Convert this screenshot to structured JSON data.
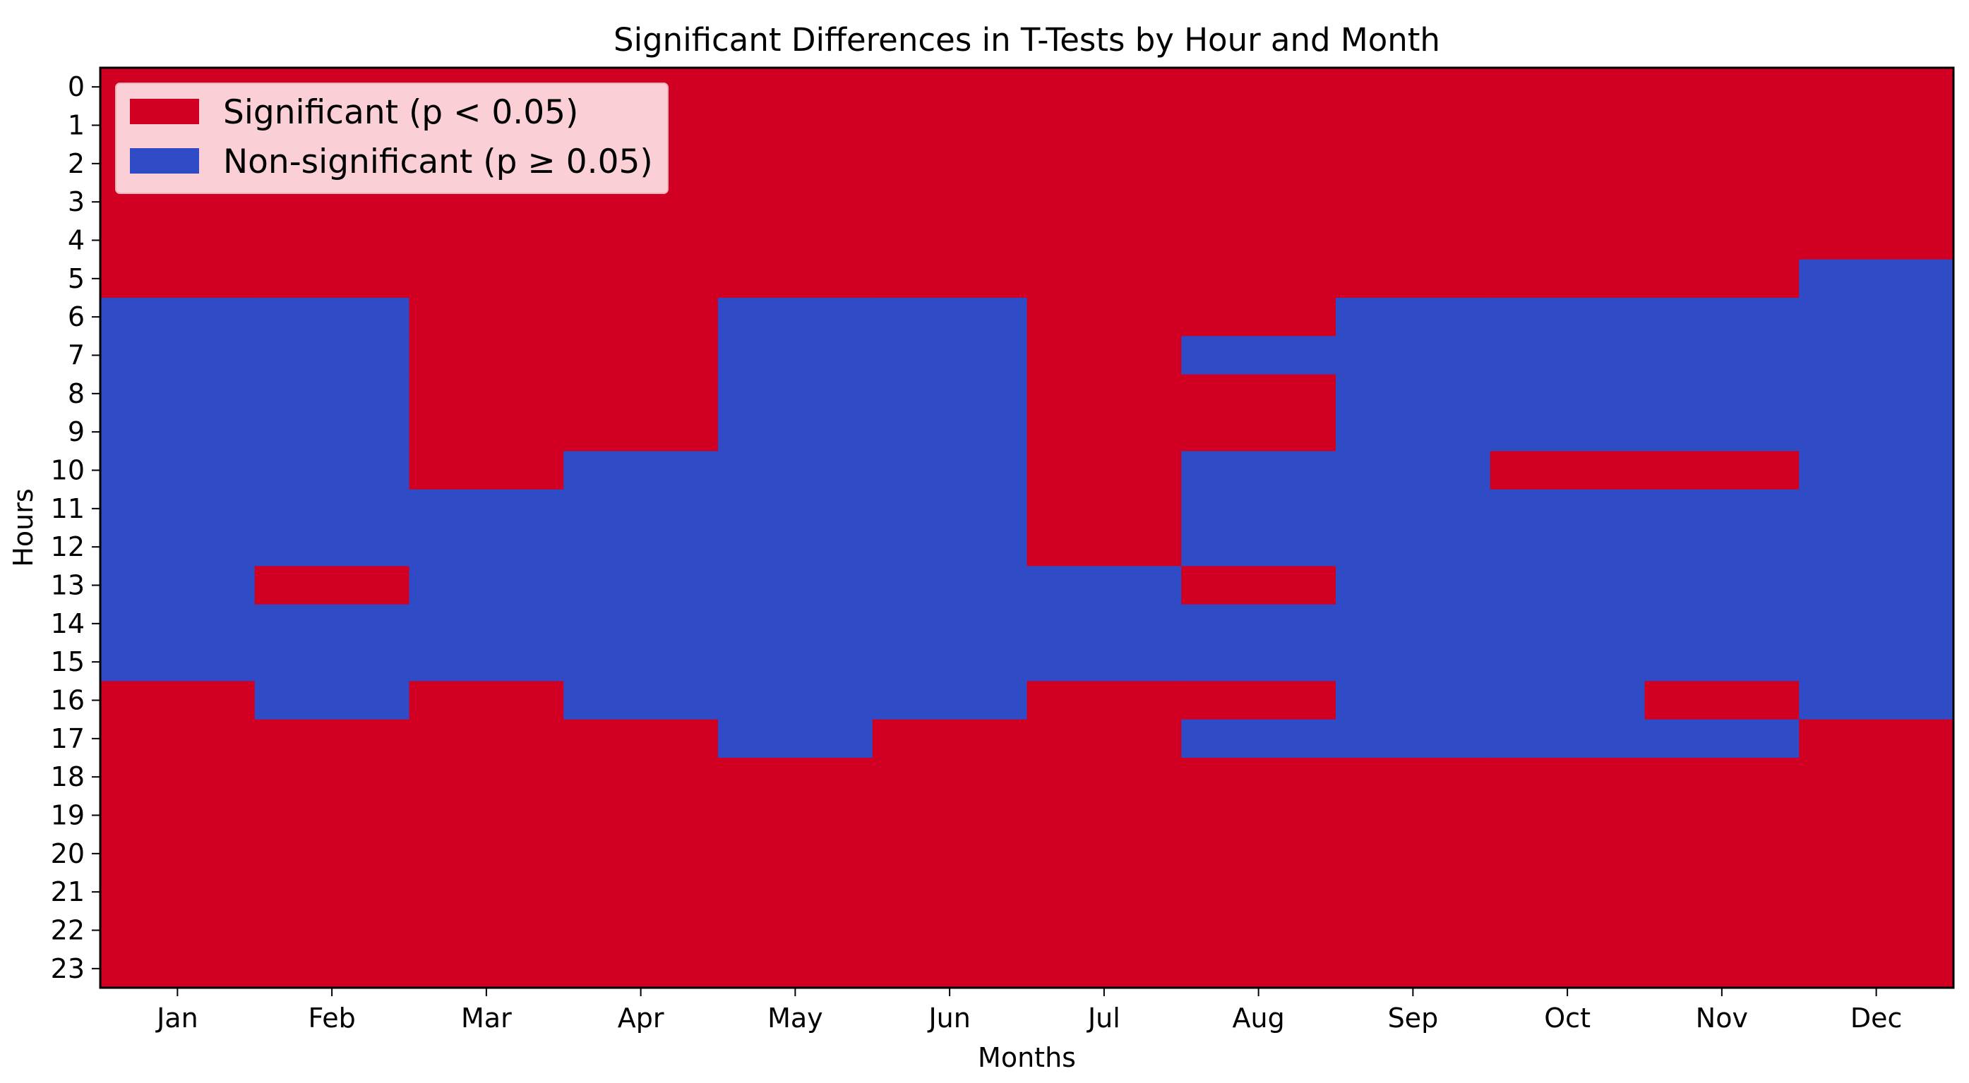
{
  "chart_data": {
    "type": "heatmap",
    "title": "Significant Differences in T-Tests by Hour and Month",
    "xlabel": "Months",
    "ylabel": "Hours",
    "x_categories": [
      "Jan",
      "Feb",
      "Mar",
      "Apr",
      "May",
      "Jun",
      "Jul",
      "Aug",
      "Sep",
      "Oct",
      "Nov",
      "Dec"
    ],
    "y_categories": [
      "0",
      "1",
      "2",
      "3",
      "4",
      "5",
      "6",
      "7",
      "8",
      "9",
      "10",
      "11",
      "12",
      "13",
      "14",
      "15",
      "16",
      "17",
      "18",
      "19",
      "20",
      "21",
      "22",
      "23"
    ],
    "value_meaning": {
      "1": "Significant (p < 0.05)",
      "0": "Non-significant (p ≥ 0.05)"
    },
    "matrix": [
      [
        1,
        1,
        1,
        1,
        1,
        1,
        1,
        1,
        1,
        1,
        1,
        1
      ],
      [
        1,
        1,
        1,
        1,
        1,
        1,
        1,
        1,
        1,
        1,
        1,
        1
      ],
      [
        1,
        1,
        1,
        1,
        1,
        1,
        1,
        1,
        1,
        1,
        1,
        1
      ],
      [
        1,
        1,
        1,
        1,
        1,
        1,
        1,
        1,
        1,
        1,
        1,
        1
      ],
      [
        1,
        1,
        1,
        1,
        1,
        1,
        1,
        1,
        1,
        1,
        1,
        1
      ],
      [
        1,
        1,
        1,
        1,
        1,
        1,
        1,
        1,
        1,
        1,
        1,
        0
      ],
      [
        0,
        0,
        1,
        1,
        0,
        0,
        1,
        1,
        0,
        0,
        0,
        0
      ],
      [
        0,
        0,
        1,
        1,
        0,
        0,
        1,
        0,
        0,
        0,
        0,
        0
      ],
      [
        0,
        0,
        1,
        1,
        0,
        0,
        1,
        1,
        0,
        0,
        0,
        0
      ],
      [
        0,
        0,
        1,
        1,
        0,
        0,
        1,
        1,
        0,
        0,
        0,
        0
      ],
      [
        0,
        0,
        1,
        0,
        0,
        0,
        1,
        0,
        0,
        1,
        1,
        0
      ],
      [
        0,
        0,
        0,
        0,
        0,
        0,
        1,
        0,
        0,
        0,
        0,
        0
      ],
      [
        0,
        0,
        0,
        0,
        0,
        0,
        1,
        0,
        0,
        0,
        0,
        0
      ],
      [
        0,
        1,
        0,
        0,
        0,
        0,
        0,
        1,
        0,
        0,
        0,
        0
      ],
      [
        0,
        0,
        0,
        0,
        0,
        0,
        0,
        0,
        0,
        0,
        0,
        0
      ],
      [
        0,
        0,
        0,
        0,
        0,
        0,
        0,
        0,
        0,
        0,
        0,
        0
      ],
      [
        1,
        0,
        1,
        0,
        0,
        0,
        1,
        1,
        0,
        0,
        1,
        0
      ],
      [
        1,
        1,
        1,
        1,
        0,
        1,
        1,
        0,
        0,
        0,
        0,
        1
      ],
      [
        1,
        1,
        1,
        1,
        1,
        1,
        1,
        1,
        1,
        1,
        1,
        1
      ],
      [
        1,
        1,
        1,
        1,
        1,
        1,
        1,
        1,
        1,
        1,
        1,
        1
      ],
      [
        1,
        1,
        1,
        1,
        1,
        1,
        1,
        1,
        1,
        1,
        1,
        1
      ],
      [
        1,
        1,
        1,
        1,
        1,
        1,
        1,
        1,
        1,
        1,
        1,
        1
      ],
      [
        1,
        1,
        1,
        1,
        1,
        1,
        1,
        1,
        1,
        1,
        1,
        1
      ],
      [
        1,
        1,
        1,
        1,
        1,
        1,
        1,
        1,
        1,
        1,
        1,
        1
      ]
    ],
    "legend": {
      "position": "upper-left",
      "items": [
        {
          "label": "Significant (p < 0.05)",
          "color": "#d10023"
        },
        {
          "label": "Non-significant (p ≥ 0.05)",
          "color": "#2f4bc6"
        }
      ]
    },
    "colors": {
      "significant": "#d10023",
      "non_significant": "#2f4bc6"
    },
    "grid": false
  }
}
